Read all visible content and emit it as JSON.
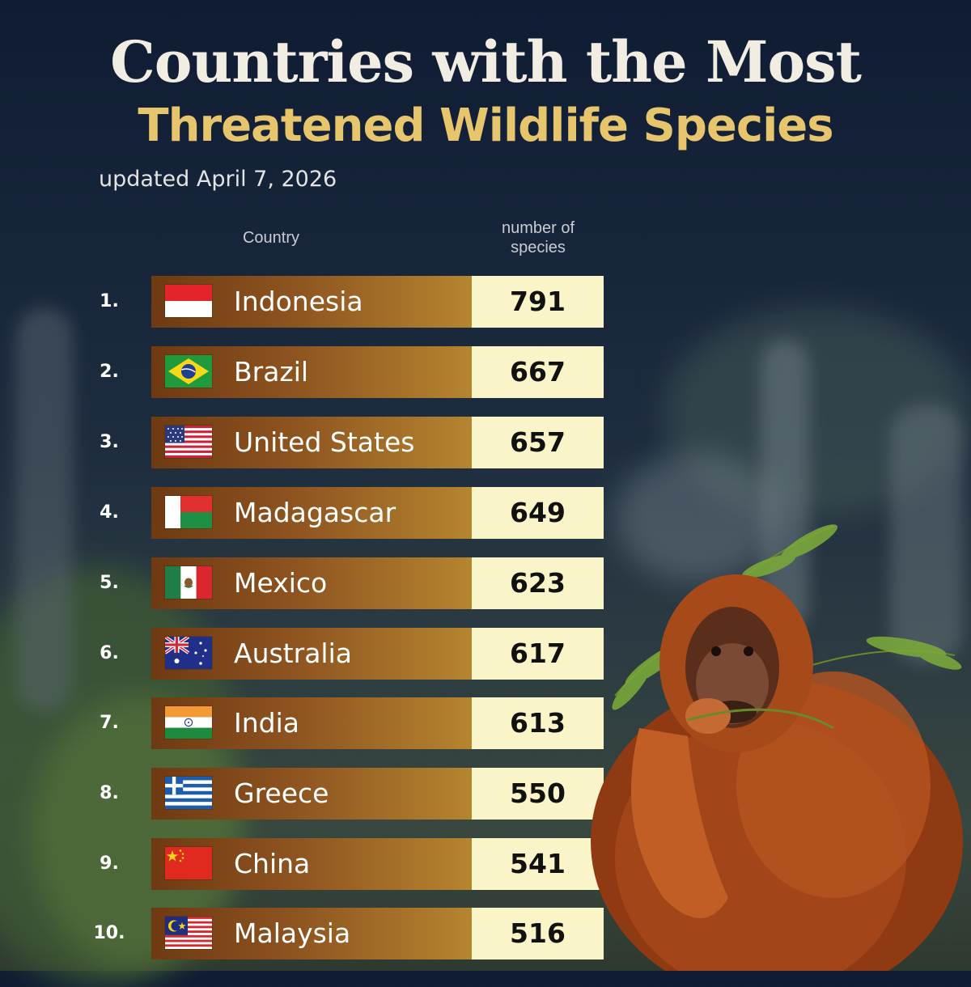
{
  "title_line1": "Countries with the Most",
  "title_line2": "Threatened Wildlife Species",
  "subtitle": "updated April 7, 2026",
  "columns": {
    "country": "Country",
    "number_line1": "number of",
    "number_line2": "species"
  },
  "colors": {
    "title": "#f2ede3",
    "title_accent": "#e6c56c",
    "bar_start": "#6f3a12",
    "bar_end": "#b5852f",
    "value_box": "#faf5c8"
  },
  "rows": [
    {
      "rank": "1.",
      "country": "Indonesia",
      "value": "791",
      "flag": "indonesia-flag-icon"
    },
    {
      "rank": "2.",
      "country": "Brazil",
      "value": "667",
      "flag": "brazil-flag-icon"
    },
    {
      "rank": "3.",
      "country": "United States",
      "value": "657",
      "flag": "usa-flag-icon"
    },
    {
      "rank": "4.",
      "country": "Madagascar",
      "value": "649",
      "flag": "madagascar-flag-icon"
    },
    {
      "rank": "5.",
      "country": "Mexico",
      "value": "623",
      "flag": "mexico-flag-icon"
    },
    {
      "rank": "6.",
      "country": "Australia",
      "value": "617",
      "flag": "australia-flag-icon"
    },
    {
      "rank": "7.",
      "country": "India",
      "value": "613",
      "flag": "india-flag-icon"
    },
    {
      "rank": "8.",
      "country": "Greece",
      "value": "550",
      "flag": "greece-flag-icon"
    },
    {
      "rank": "9.",
      "country": "China",
      "value": "541",
      "flag": "china-flag-icon"
    },
    {
      "rank": "10.",
      "country": "Malaysia",
      "value": "516",
      "flag": "malaysia-flag-icon"
    }
  ],
  "illustration": "orangutan-illustration"
}
